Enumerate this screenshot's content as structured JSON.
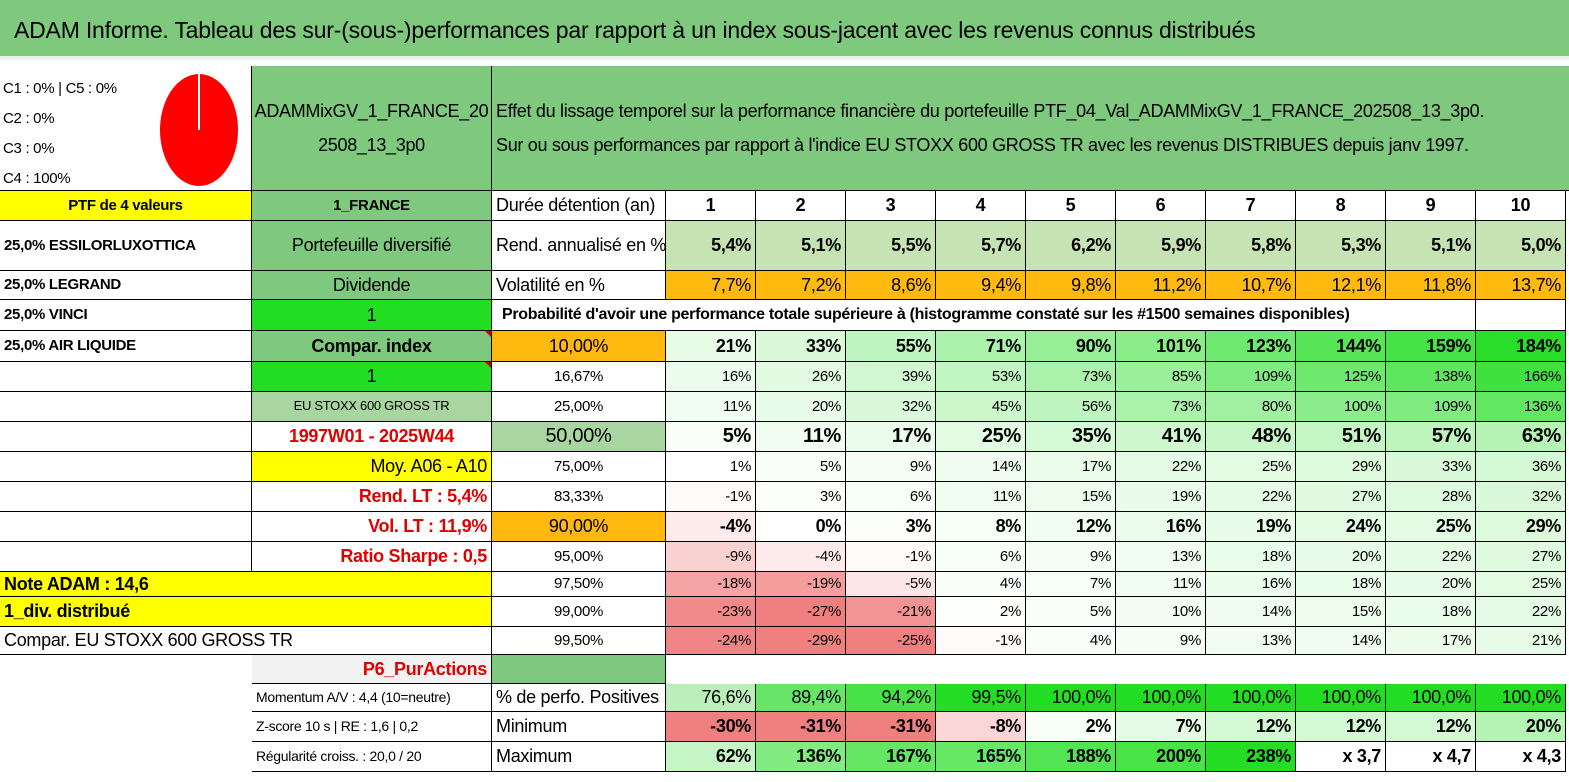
{
  "title": "ADAM Informe. Tableau des sur-(sous-)performances par rapport à un index sous-jacent avec les revenus connus distribués",
  "composition": [
    "C1 : 0% | C5 : 0%",
    "C2 : 0%",
    "C3 : 0%",
    "C4 : 100%"
  ],
  "portfolio_name": "ADAMMixGV_1_FRANCE_202508_13_3p0",
  "description_line1": "Effet du lissage temporel sur la performance financière du portefeuille PTF_04_Val_ADAMMixGV_1_FRANCE_202508_13_3p0.",
  "description_line2": "Sur ou sous performances par rapport à l'indice EU STOXX 600 GROSS TR avec les revenus DISTRIBUES depuis janv 1997.",
  "left_col": [
    "PTF de 4 valeurs",
    "25,0% ESSILORLUXOTTICA",
    "25,0% LEGRAND",
    "25,0% VINCI",
    "25,0% AIR LIQUIDE"
  ],
  "mid_col": {
    "r0": "1_FRANCE",
    "r1": "Portefeuille diversifié",
    "r2": "Dividende",
    "r3": "1",
    "r4": "Compar. index",
    "r5": "1",
    "r6": "EU STOXX 600 GROSS TR",
    "r7": "1997W01 - 2025W44",
    "r8": "Moy. A06 - A10",
    "r9": "Rend. LT : 5,4%",
    "r10": "Vol. LT : 11,9%",
    "r11": "Ratio Sharpe : 0,5",
    "r12": "Note ADAM : 14,6",
    "r13": "1_div. distribué",
    "r14": "Compar. EU STOXX 600 GROSS TR",
    "r15": "P6_PurActions",
    "r16": "Momentum A/V : 4,4 (10=neutre)",
    "r17": "Z-score 10 s | RE : 1,6 | 0,2",
    "r18": "Régularité croiss. : 20,0 / 20"
  },
  "row_labels": {
    "duration": "Durée détention (an)",
    "rend": "Rend. annualisé en %",
    "vol": "Volatilité en %",
    "proba": "Probabilité d'avoir une performance totale supérieure à (histogramme constaté sur les #1500 semaines disponibles)",
    "pos": "% de perfo. Positives",
    "min": "Minimum",
    "max": "Maximum"
  },
  "years": [
    "1",
    "2",
    "3",
    "4",
    "5",
    "6",
    "7",
    "8",
    "9",
    "10"
  ],
  "rend": [
    "5,4%",
    "5,1%",
    "5,5%",
    "5,7%",
    "6,2%",
    "5,9%",
    "5,8%",
    "5,3%",
    "5,1%",
    "5,0%"
  ],
  "vol": [
    "7,7%",
    "7,2%",
    "8,6%",
    "9,4%",
    "9,8%",
    "11,2%",
    "10,7%",
    "12,1%",
    "11,8%",
    "13,7%"
  ],
  "quantiles": [
    {
      "q": "10,00%",
      "v": [
        "21%",
        "33%",
        "55%",
        "71%",
        "90%",
        "101%",
        "123%",
        "144%",
        "159%",
        "184%"
      ]
    },
    {
      "q": "16,67%",
      "v": [
        "16%",
        "26%",
        "39%",
        "53%",
        "73%",
        "85%",
        "109%",
        "125%",
        "138%",
        "166%"
      ]
    },
    {
      "q": "25,00%",
      "v": [
        "11%",
        "20%",
        "32%",
        "45%",
        "56%",
        "73%",
        "80%",
        "100%",
        "109%",
        "136%"
      ]
    },
    {
      "q": "50,00%",
      "v": [
        "5%",
        "11%",
        "17%",
        "25%",
        "35%",
        "41%",
        "48%",
        "51%",
        "57%",
        "63%"
      ]
    },
    {
      "q": "75,00%",
      "v": [
        "1%",
        "5%",
        "9%",
        "14%",
        "17%",
        "22%",
        "25%",
        "29%",
        "33%",
        "36%"
      ]
    },
    {
      "q": "83,33%",
      "v": [
        "-1%",
        "3%",
        "6%",
        "11%",
        "15%",
        "19%",
        "22%",
        "27%",
        "28%",
        "32%"
      ]
    },
    {
      "q": "90,00%",
      "v": [
        "-4%",
        "0%",
        "3%",
        "8%",
        "12%",
        "16%",
        "19%",
        "24%",
        "25%",
        "29%"
      ]
    },
    {
      "q": "95,00%",
      "v": [
        "-9%",
        "-4%",
        "-1%",
        "6%",
        "9%",
        "13%",
        "18%",
        "20%",
        "22%",
        "27%"
      ]
    },
    {
      "q": "97,50%",
      "v": [
        "-18%",
        "-19%",
        "-5%",
        "4%",
        "7%",
        "11%",
        "16%",
        "18%",
        "20%",
        "25%"
      ]
    },
    {
      "q": "99,00%",
      "v": [
        "-23%",
        "-27%",
        "-21%",
        "2%",
        "5%",
        "10%",
        "14%",
        "15%",
        "18%",
        "22%"
      ]
    },
    {
      "q": "99,50%",
      "v": [
        "-24%",
        "-29%",
        "-25%",
        "-1%",
        "4%",
        "9%",
        "13%",
        "14%",
        "17%",
        "21%"
      ]
    }
  ],
  "pos": [
    "76,6%",
    "89,4%",
    "94,2%",
    "99,5%",
    "100,0%",
    "100,0%",
    "100,0%",
    "100,0%",
    "100,0%",
    "100,0%"
  ],
  "min": [
    "-30%",
    "-31%",
    "-31%",
    "-8%",
    "2%",
    "7%",
    "12%",
    "12%",
    "12%",
    "20%"
  ],
  "max": [
    "62%",
    "136%",
    "167%",
    "165%",
    "188%",
    "200%",
    "238%",
    "x 3,7",
    "x 4,7",
    "x 4,3"
  ],
  "colors": {
    "header_green": "#7fc97f",
    "bright_green": "#22dd22",
    "yellow": "#ffff00",
    "orange": "#ffb90f",
    "red_text": "#e00000",
    "pie_red": "#ff0000"
  }
}
